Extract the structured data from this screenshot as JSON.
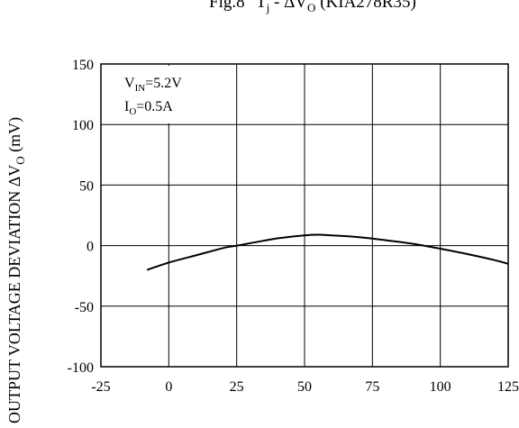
{
  "figure": {
    "title_prefix": "Fig.8",
    "title_main": "T",
    "title_main_sub": "j",
    "title_sep": " - ",
    "title_delta": "ΔV",
    "title_delta_sub": "O",
    "title_suffix": " (KIA278R35)"
  },
  "annotation": {
    "vin_main": "V",
    "vin_sub": "IN",
    "vin_rest": "=5.2V",
    "io_main": "I",
    "io_sub": "O",
    "io_rest": "=0.5A"
  },
  "ylabel": {
    "main": "OUTPUT VOLTAGE DEVIATION  ΔV",
    "sub": "O",
    "unit": " (mV)"
  },
  "chart_data": {
    "type": "line",
    "xlim": [
      -25,
      125
    ],
    "ylim": [
      -100,
      150
    ],
    "grid": true,
    "x_ticks": [
      -25,
      0,
      25,
      50,
      75,
      100,
      125
    ],
    "y_ticks": [
      -100,
      -50,
      0,
      50,
      100,
      150
    ],
    "series": [
      {
        "color": "#000000",
        "x": [
          -8,
          0,
          10,
          20,
          25,
          30,
          40,
          50,
          55,
          60,
          70,
          80,
          90,
          100,
          110,
          120,
          125
        ],
        "y": [
          -20,
          -14,
          -8,
          -2,
          0,
          2,
          6,
          8.5,
          9,
          8.5,
          7,
          4.5,
          1.5,
          -2.5,
          -7,
          -12,
          -15
        ]
      }
    ]
  }
}
